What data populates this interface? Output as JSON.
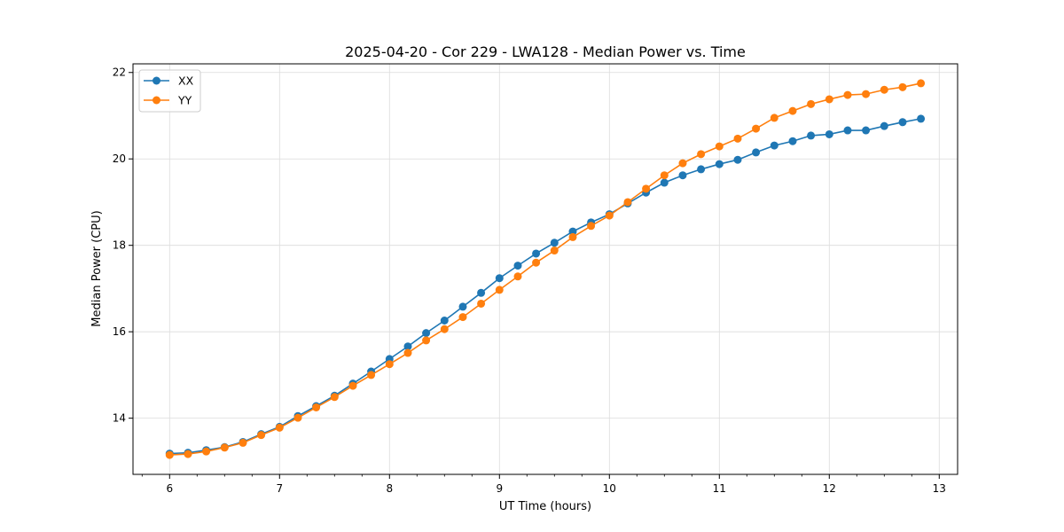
{
  "chart_data": {
    "type": "line",
    "title": "2025-04-20 - Cor 229 - LWA128 - Median Power vs. Time",
    "xlabel": "UT Time (hours)",
    "ylabel": "Median Power (CPU)",
    "xlim": [
      5.667,
      13.167
    ],
    "ylim": [
      12.7,
      22.2
    ],
    "xticks": [
      6,
      7,
      8,
      9,
      10,
      11,
      12,
      13
    ],
    "yticks": [
      14,
      16,
      18,
      20,
      22
    ],
    "grid": true,
    "legend_position": "top-left",
    "x": [
      6.0,
      6.167,
      6.333,
      6.5,
      6.667,
      6.833,
      7.0,
      7.167,
      7.333,
      7.5,
      7.667,
      7.833,
      8.0,
      8.167,
      8.333,
      8.5,
      8.667,
      8.833,
      9.0,
      9.167,
      9.333,
      9.5,
      9.667,
      9.833,
      10.0,
      10.167,
      10.333,
      10.5,
      10.667,
      10.833,
      11.0,
      11.167,
      11.333,
      11.5,
      11.667,
      11.833,
      12.0,
      12.167,
      12.333,
      12.5,
      12.667,
      12.833
    ],
    "series": [
      {
        "name": "XX",
        "color": "#1f77b4",
        "values": [
          13.18,
          13.2,
          13.26,
          13.33,
          13.45,
          13.63,
          13.8,
          14.05,
          14.28,
          14.52,
          14.8,
          15.08,
          15.37,
          15.66,
          15.97,
          16.26,
          16.58,
          16.9,
          17.24,
          17.53,
          17.81,
          18.06,
          18.32,
          18.53,
          18.72,
          18.97,
          19.22,
          19.45,
          19.62,
          19.76,
          19.88,
          19.98,
          20.15,
          20.31,
          20.41,
          20.54,
          20.57,
          20.66,
          20.66,
          20.76,
          20.85,
          20.93
        ]
      },
      {
        "name": "YY",
        "color": "#ff7f0e",
        "values": [
          13.15,
          13.17,
          13.23,
          13.32,
          13.43,
          13.61,
          13.78,
          14.01,
          14.25,
          14.49,
          14.75,
          15.0,
          15.25,
          15.51,
          15.8,
          16.06,
          16.34,
          16.65,
          16.97,
          17.28,
          17.6,
          17.88,
          18.19,
          18.45,
          18.69,
          19.0,
          19.31,
          19.62,
          19.9,
          20.11,
          20.29,
          20.47,
          20.7,
          20.95,
          21.11,
          21.27,
          21.38,
          21.48,
          21.5,
          21.6,
          21.66,
          21.75
        ]
      }
    ]
  }
}
